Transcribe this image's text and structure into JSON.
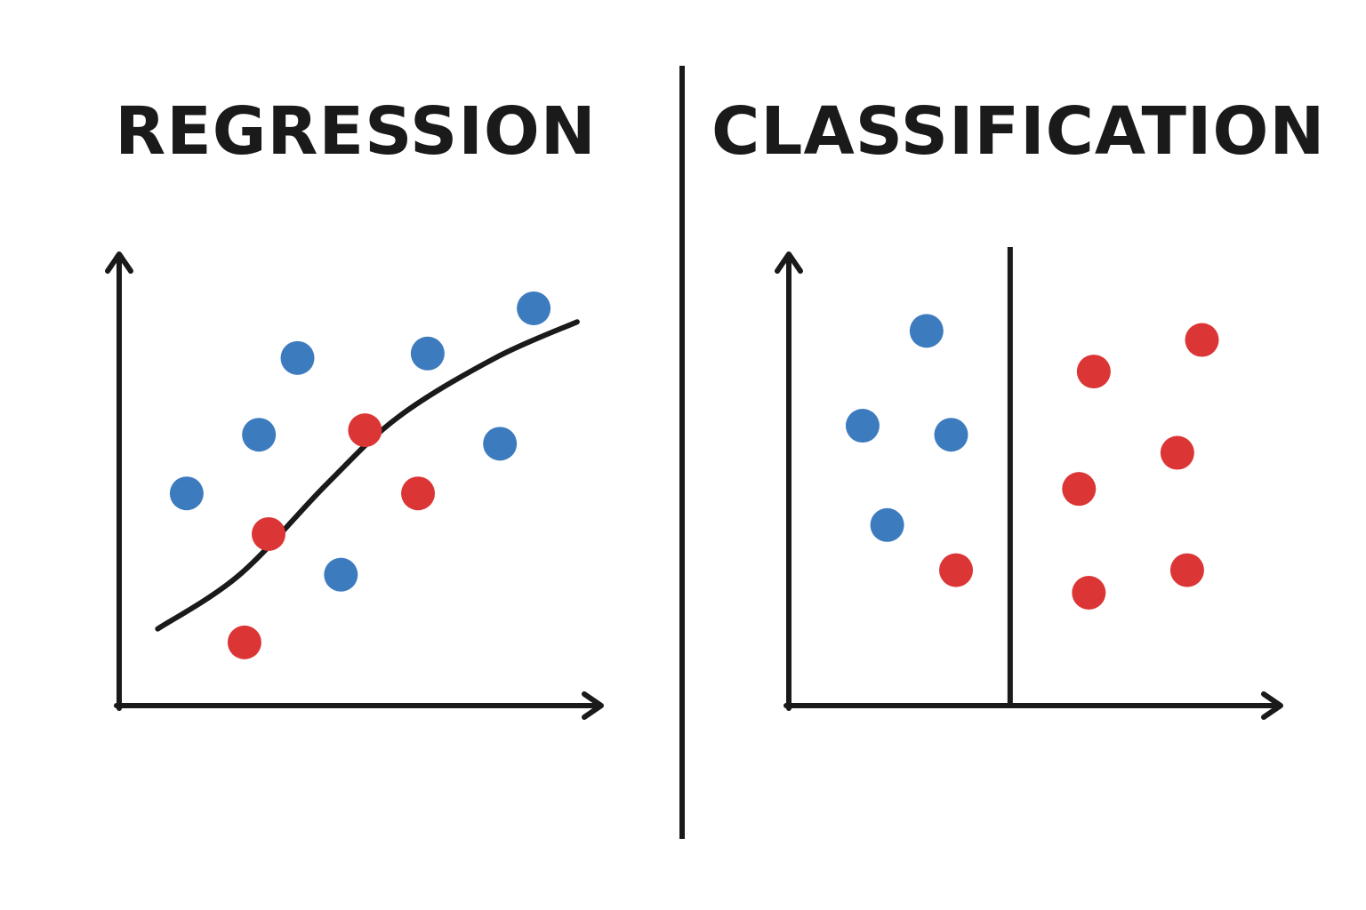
{
  "colors": {
    "class_a": "#3d7bbf",
    "class_b": "#dc3535",
    "ink": "#1a1a1a"
  },
  "regression": {
    "title": "REGRESSION"
  },
  "classification": {
    "title": "CLASSIFICATION"
  },
  "chart_data": [
    {
      "type": "scatter",
      "title": "REGRESSION",
      "xlabel": "",
      "ylabel": "",
      "xlim": [
        0,
        10
      ],
      "ylim": [
        0,
        10
      ],
      "grid": false,
      "series": [
        {
          "color": "#3d7bbf",
          "points": [
            [
              1.4,
              4.7
            ],
            [
              2.9,
              6.0
            ],
            [
              3.7,
              7.7
            ],
            [
              4.6,
              2.9
            ],
            [
              6.4,
              7.8
            ],
            [
              7.9,
              5.8
            ],
            [
              8.6,
              8.8
            ]
          ]
        },
        {
          "color": "#dc3535",
          "points": [
            [
              2.6,
              1.4
            ],
            [
              3.1,
              3.8
            ],
            [
              5.1,
              6.1
            ],
            [
              6.2,
              4.7
            ]
          ]
        }
      ],
      "curve": [
        [
          0.8,
          1.7
        ],
        [
          2.5,
          2.9
        ],
        [
          4.3,
          4.9
        ],
        [
          5.8,
          6.4
        ],
        [
          7.8,
          7.7
        ],
        [
          9.5,
          8.5
        ]
      ]
    },
    {
      "type": "scatter",
      "title": "CLASSIFICATION",
      "xlabel": "",
      "ylabel": "",
      "xlim": [
        0,
        10
      ],
      "ylim": [
        0,
        10
      ],
      "grid": false,
      "decision_boundary_x": 4.5,
      "series": [
        {
          "color": "#3d7bbf",
          "points": [
            [
              1.5,
              6.2
            ],
            [
              2.0,
              4.0
            ],
            [
              2.8,
              8.3
            ],
            [
              3.3,
              6.0
            ]
          ]
        },
        {
          "color": "#dc3535",
          "points": [
            [
              3.4,
              3.0
            ],
            [
              5.9,
              4.8
            ],
            [
              6.1,
              2.5
            ],
            [
              6.2,
              7.4
            ],
            [
              7.9,
              5.6
            ],
            [
              8.1,
              3.0
            ],
            [
              8.4,
              8.1
            ]
          ]
        }
      ]
    }
  ]
}
